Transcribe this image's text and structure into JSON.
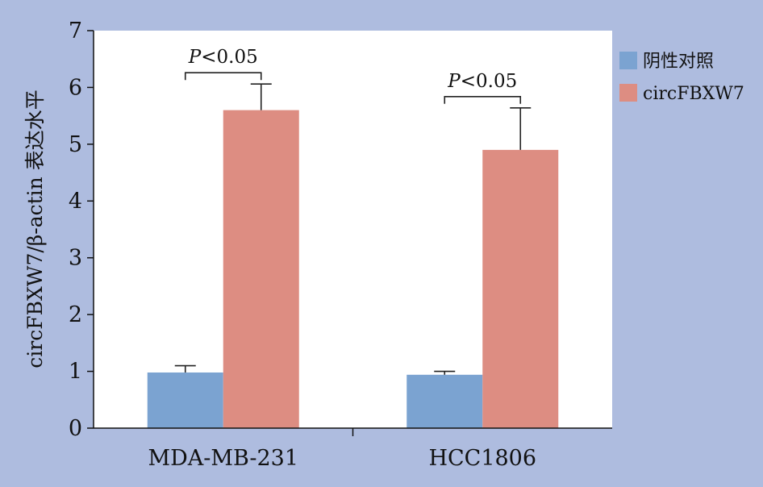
{
  "chart_data": {
    "type": "bar",
    "title": "",
    "xlabel": "",
    "ylabel": "circFBXW7/β-actin 表达水平",
    "ylim": [
      0,
      7
    ],
    "yticks": [
      "0",
      "1",
      "2",
      "3",
      "4",
      "5",
      "6",
      "7"
    ],
    "categories": [
      "MDA-MB-231",
      "HCC1806"
    ],
    "series": [
      {
        "name": "阴性对照",
        "color": "#7ba3d1",
        "values": [
          0.98,
          0.94
        ],
        "errors": [
          0.12,
          0.06
        ]
      },
      {
        "name": "circFBXW7",
        "color": "#dd8d82",
        "values": [
          5.6,
          4.9
        ],
        "errors": [
          0.46,
          0.74
        ]
      }
    ],
    "annotations": [
      {
        "prefix": "P",
        "text": "<0.05",
        "category": "MDA-MB-231"
      },
      {
        "prefix": "P",
        "text": "<0.05",
        "category": "HCC1806"
      }
    ],
    "legend_position": "right",
    "grid": false
  }
}
